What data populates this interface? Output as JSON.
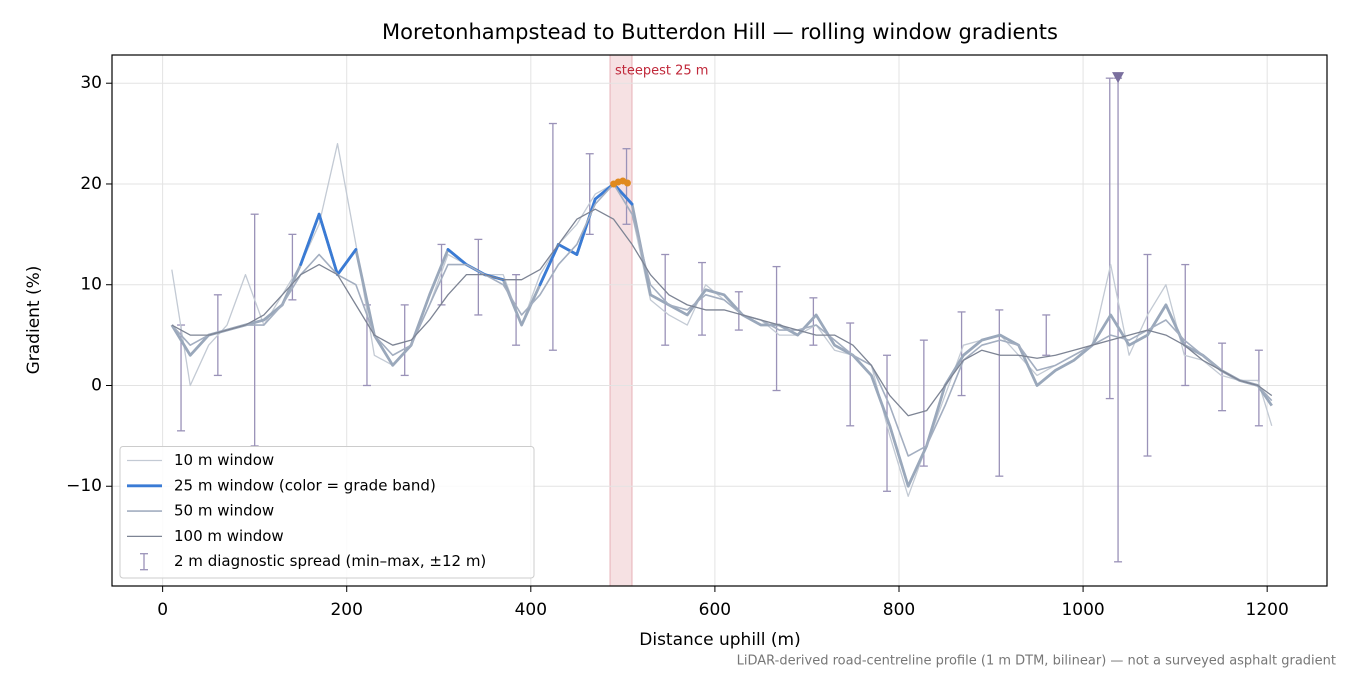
{
  "chart_data": {
    "type": "line",
    "title": "Moretonhampstead to Butterdon Hill — rolling window gradients",
    "x_label": "Distance uphill (m)",
    "y_label": "Gradient (%)",
    "footnote": "LiDAR-derived road-centreline profile (1 m DTM, bilinear) — not a surveyed asphalt gradient",
    "xlim": [
      -55,
      1265
    ],
    "ylim": [
      -19.9,
      32.8
    ],
    "xticks": [
      0,
      200,
      400,
      600,
      800,
      1000,
      1200
    ],
    "yticks": [
      {
        "value": -10,
        "label": "−10"
      },
      0,
      10,
      20,
      30
    ],
    "grid": true,
    "legend": "lower left",
    "x": [
      10,
      30,
      50,
      70,
      90,
      110,
      130,
      150,
      170,
      190,
      210,
      230,
      250,
      270,
      290,
      310,
      330,
      350,
      370,
      390,
      410,
      430,
      450,
      470,
      490,
      510,
      530,
      550,
      570,
      590,
      610,
      630,
      650,
      670,
      690,
      710,
      730,
      750,
      770,
      790,
      810,
      830,
      850,
      870,
      890,
      910,
      930,
      950,
      970,
      990,
      1010,
      1030,
      1050,
      1070,
      1090,
      1110,
      1130,
      1150,
      1170,
      1190,
      1205
    ],
    "series": [
      {
        "name": "10 m window",
        "color": "#c3cad4",
        "width": 1.3,
        "values": [
          11.5,
          0,
          4,
          6,
          11,
          6,
          9,
          12,
          16,
          24,
          14,
          3,
          2,
          4,
          8,
          13,
          12,
          11,
          11,
          6,
          11,
          14,
          16,
          19,
          20,
          17,
          8.5,
          7,
          6,
          10,
          8.5,
          7,
          6.5,
          5,
          5,
          6,
          3.5,
          3,
          2,
          -5,
          -11,
          -6,
          -1,
          4,
          4.5,
          5,
          3,
          1,
          2,
          3,
          4,
          12,
          3,
          7,
          10,
          3,
          2.5,
          1,
          0.5,
          0.5,
          -4
        ]
      },
      {
        "name": "25 m window (color = grade band)",
        "color": "#3a7bd5",
        "below_band_color": "#9aa8bb",
        "band_min": 10,
        "width": 2.8,
        "values": [
          6,
          3,
          5,
          5.5,
          6,
          6.5,
          8,
          12,
          17,
          11,
          13.5,
          5,
          2,
          4,
          9,
          13.5,
          12,
          11,
          10.5,
          6,
          10,
          14,
          13,
          18.5,
          20,
          18,
          9,
          8,
          7,
          9.5,
          9,
          7,
          6,
          6,
          5,
          7,
          4,
          3,
          1,
          -4,
          -10,
          -6,
          0,
          3,
          4.5,
          5,
          4,
          0,
          1.5,
          2.5,
          4,
          7,
          4,
          5,
          8,
          4,
          3,
          1.5,
          0.5,
          0,
          -2
        ]
      },
      {
        "name": "50 m window",
        "color": "#a3aec0",
        "width": 1.6,
        "values": [
          6,
          4,
          5,
          5.5,
          6,
          6,
          8,
          11,
          13,
          11,
          10,
          5,
          3,
          4,
          8,
          12,
          12,
          11,
          10,
          7,
          9,
          12,
          14,
          18,
          20,
          17,
          10,
          8,
          7.5,
          9,
          8.5,
          7,
          6.5,
          5.5,
          5.5,
          6,
          4.5,
          3,
          2,
          -2,
          -7,
          -6,
          -2,
          2.5,
          4,
          4.5,
          4,
          1.5,
          2,
          3,
          4,
          5,
          4.5,
          5.5,
          6.5,
          4.5,
          3,
          1.5,
          0.5,
          0,
          -1.5
        ]
      },
      {
        "name": "100 m window",
        "color": "#7d8494",
        "width": 1.3,
        "values": [
          6,
          5,
          5,
          5.5,
          6,
          7,
          9,
          11,
          12,
          11,
          8,
          5,
          4,
          4.5,
          6.5,
          9,
          11,
          11,
          10.5,
          10.5,
          11.5,
          14,
          16.5,
          17.5,
          16.5,
          14,
          11,
          9,
          8,
          7.5,
          7.5,
          7,
          6.5,
          6,
          5.5,
          5,
          5,
          4,
          2,
          -1,
          -3,
          -2.5,
          0,
          2.5,
          3.5,
          3,
          3,
          2.7,
          3,
          3.5,
          4,
          4.5,
          5,
          5.5,
          5,
          4,
          2.5,
          1.5,
          0.5,
          0,
          -1
        ]
      }
    ],
    "errorbars": {
      "name": "2 m diagnostic spread (min–max, ±12 m)",
      "color": "#9a92b8",
      "x": [
        20,
        60,
        100,
        141,
        222,
        263,
        303,
        343,
        384,
        424,
        464,
        504,
        546,
        586,
        626,
        667,
        707,
        747,
        787,
        827,
        868,
        909,
        960,
        1029,
        1038,
        1070,
        1111,
        1151,
        1191
      ],
      "low": [
        -4.5,
        1,
        -6,
        8.5,
        0,
        1,
        8,
        7,
        4,
        3.5,
        15,
        16,
        4,
        5,
        5.5,
        -0.5,
        4,
        -4,
        -10.5,
        -8,
        -1,
        -9,
        3,
        -1.3,
        -17.5,
        -7,
        0,
        -2.5,
        -4
      ],
      "high": [
        6,
        9,
        17,
        15,
        8,
        8,
        14,
        14.5,
        11,
        26,
        23,
        23.5,
        13,
        12.2,
        9.3,
        11.8,
        8.7,
        6.2,
        3,
        4.5,
        7.3,
        7.5,
        7,
        30.5,
        30.5,
        13,
        12,
        4.2,
        3.5
      ]
    },
    "overflow_marker": {
      "x": 1038,
      "y": 30.5,
      "color": "#7a6f9e"
    },
    "steepest": {
      "label": "steepest 25 m",
      "span": [
        486,
        510
      ],
      "color": "#c0283a",
      "points_x": [
        490,
        495,
        500,
        505
      ],
      "points_y": [
        20,
        20.2,
        20.3,
        20.1
      ],
      "point_color": "#e08a1e"
    }
  }
}
